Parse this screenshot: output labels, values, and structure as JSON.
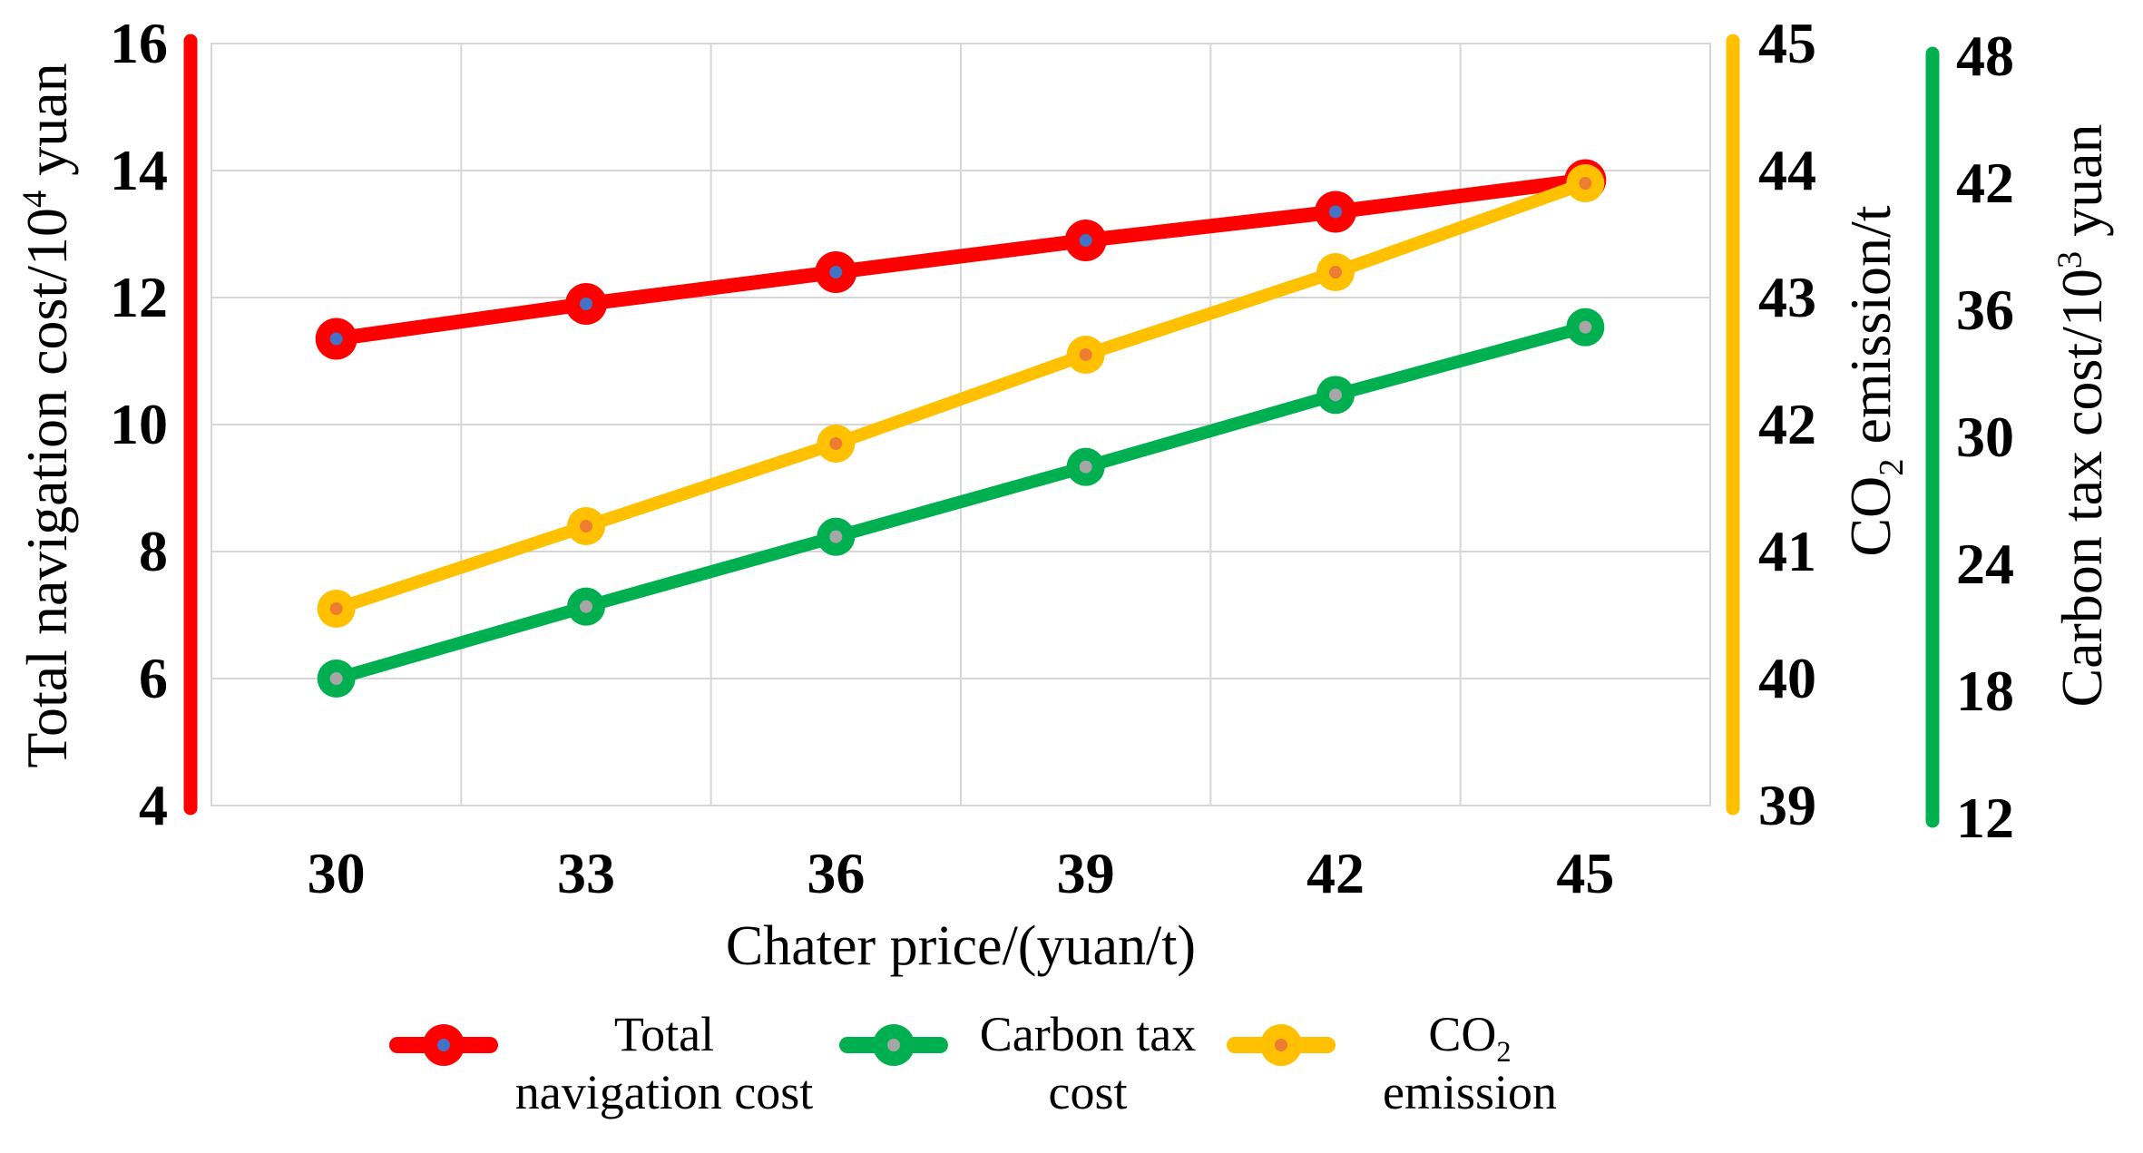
{
  "axes": {
    "x": {
      "title": "Chater price/(yuan/t)",
      "ticks": [
        "30",
        "33",
        "36",
        "39",
        "42",
        "45"
      ]
    },
    "left": {
      "title_pre": "Total navigation cost/10",
      "title_sup": "4",
      "title_post": " yuan",
      "ticks": [
        "16",
        "14",
        "12",
        "10",
        "8",
        "6",
        "4"
      ]
    },
    "co2": {
      "title_pre": "CO",
      "title_sub": "2",
      "title_post": " emission/t",
      "ticks": [
        "45",
        "44",
        "43",
        "42",
        "41",
        "40",
        "39"
      ]
    },
    "tax": {
      "title_pre": "Carbon tax cost/10",
      "title_sup": "3",
      "title_post": " yuan",
      "ticks": [
        "48",
        "42",
        "36",
        "30",
        "24",
        "18",
        "12"
      ]
    }
  },
  "legend": [
    {
      "line1": "Total",
      "line2": "navigation cost"
    },
    {
      "line1": "Carbon tax",
      "line2": "cost"
    },
    {
      "line1_pre": "CO",
      "line1_sub": "2",
      "line2": "emission"
    }
  ],
  "colors": {
    "red": "#FF0000",
    "green": "#00B050",
    "yellow": "#FFC000",
    "grid": "#D6D6D6",
    "red_marker_dot": "#4472C4",
    "green_marker_dot": "#A6A6A6",
    "yellow_marker_dot": "#ED7D31"
  },
  "chart_data": {
    "type": "line",
    "x_categories": [
      30,
      33,
      36,
      39,
      42,
      45
    ],
    "xlabel": "Chater price/(yuan/t)",
    "grid": true,
    "legend_position": "bottom",
    "axis_ranges": {
      "left": {
        "label": "Total navigation cost/10^4 yuan",
        "min": 4,
        "max": 16
      },
      "co2": {
        "label": "CO2 emission/t",
        "min": 39,
        "max": 45
      },
      "tax": {
        "label": "Carbon tax cost/10^3 yuan",
        "min": 12,
        "max": 48
      }
    },
    "series": [
      {
        "name": "Total navigation cost",
        "axis": "left",
        "color": "#FF0000",
        "marker_dot_color": "#4472C4",
        "values": [
          11.35,
          11.9,
          12.4,
          12.9,
          13.35,
          13.85
        ]
      },
      {
        "name": "Carbon tax cost",
        "axis": "tax",
        "color": "#00B050",
        "marker_dot_color": "#A6A6A6",
        "values": [
          18.0,
          21.4,
          24.7,
          28.0,
          31.4,
          34.6
        ]
      },
      {
        "name": "CO2 emission",
        "axis": "co2",
        "color": "#FFC000",
        "marker_dot_color": "#ED7D31",
        "values": [
          40.55,
          41.2,
          41.85,
          42.55,
          43.2,
          43.9
        ]
      }
    ]
  }
}
